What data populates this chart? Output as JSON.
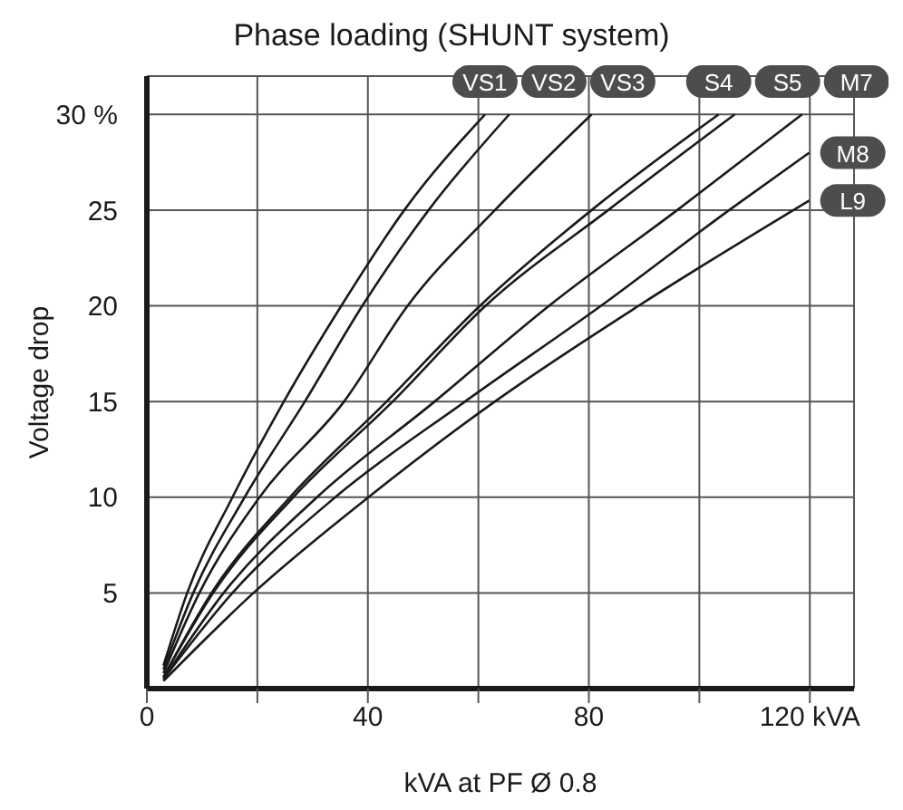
{
  "chart_data": {
    "type": "line",
    "title": "Phase loading (SHUNT system)",
    "xlabel": "kVA at PF Ø 0.8",
    "ylabel": "Voltage drop",
    "xlim": [
      0,
      128
    ],
    "ylim": [
      0,
      32
    ],
    "xticks": [
      0,
      {
        "value": 20,
        "label": null
      },
      40,
      {
        "value": 60,
        "label": null
      },
      80,
      {
        "value": 100,
        "label": null
      },
      {
        "value": 120,
        "label": "120 kVA"
      }
    ],
    "yticks": [
      5,
      10,
      15,
      20,
      25,
      {
        "value": 30,
        "label": "30 %"
      }
    ],
    "grid": true,
    "legend": false,
    "marker": "none",
    "line_style": "solid",
    "series": [
      {
        "name": "VS1",
        "color": "#1a1a1a",
        "x": [
          3,
          7.3,
          15.5,
          24.8,
          35.2,
          46.6,
          61.2
        ],
        "values": [
          1.2,
          5,
          10,
          15,
          20,
          25,
          30
        ]
      },
      {
        "name": "VS2",
        "color": "#1a1a1a",
        "x": [
          3,
          8.4,
          17.7,
          28.6,
          39,
          51,
          65.6
        ],
        "values": [
          1,
          5,
          10,
          15,
          20,
          25,
          30
        ]
      },
      {
        "name": "VS3",
        "color": "#1a1a1a",
        "x": [
          3,
          9.5,
          20.4,
          35.7,
          47.2,
          63,
          80.5
        ],
        "values": [
          0.8,
          5,
          10,
          15,
          20,
          25,
          30
        ]
      },
      {
        "name": "S4",
        "color": "#1a1a1a",
        "x": [
          3,
          11.7,
          25.9,
          43.4,
          60.3,
          80.5,
          103.5
        ],
        "values": [
          0.6,
          5,
          10,
          15,
          20,
          25,
          30
        ]
      },
      {
        "name": "S5",
        "color": "#1a1a1a",
        "x": [
          3,
          12,
          26.5,
          44.5,
          61.3,
          83.5,
          106.4
        ],
        "values": [
          0.6,
          5,
          10,
          15,
          20,
          25,
          30
        ]
      },
      {
        "name": "M7",
        "color": "#1a1a1a",
        "x": [
          3,
          13.9,
          30.8,
          52.1,
          72.8,
          96,
          118.6
        ],
        "values": [
          0.5,
          5,
          10,
          15,
          20,
          25,
          30
        ]
      },
      {
        "name": "M8",
        "color": "#1a1a1a",
        "x": [
          3,
          15.5,
          34.1,
          57.6,
          82.2,
          105.4,
          119.9
        ],
        "values": [
          0.5,
          5,
          10,
          15,
          20,
          25,
          28
        ]
      },
      {
        "name": "L9",
        "color": "#1a1a1a",
        "x": [
          3,
          19.3,
          40.1,
          63,
          89,
          119.9
        ],
        "values": [
          0.4,
          5,
          10,
          15,
          20,
          25.5
        ]
      }
    ]
  }
}
